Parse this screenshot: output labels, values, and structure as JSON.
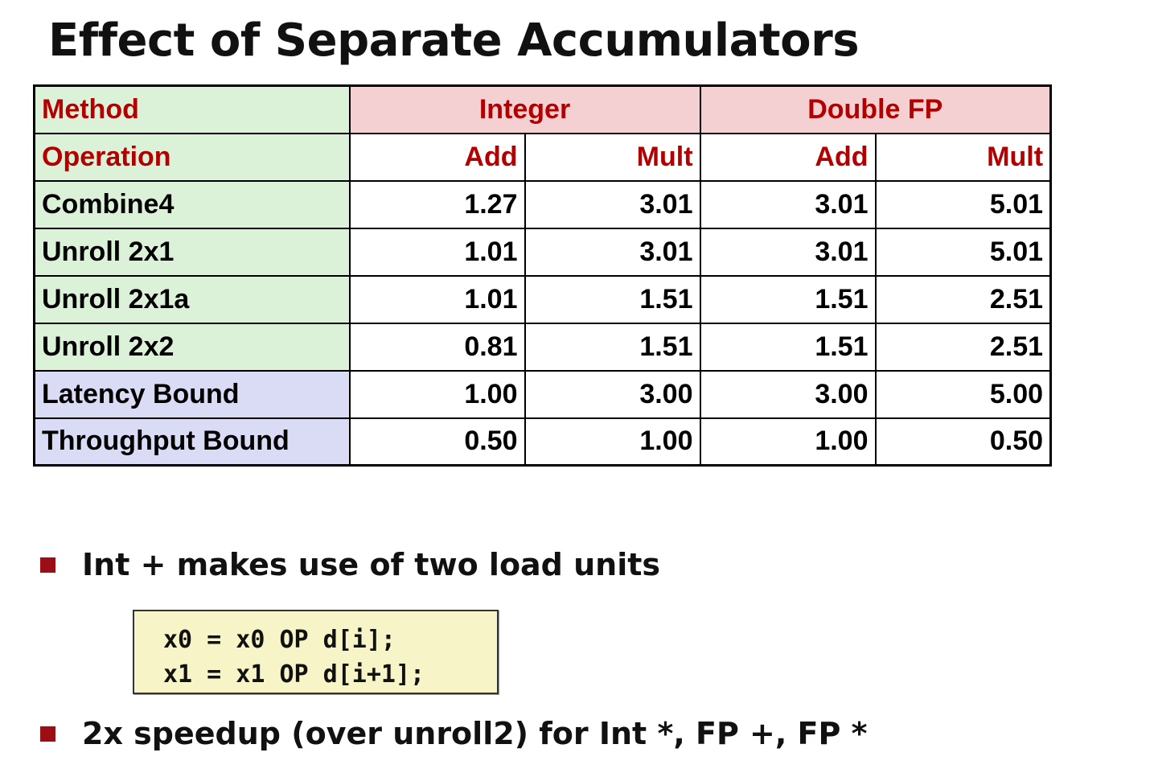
{
  "title": "Effect of Separate Accumulators",
  "table": {
    "method_label": "Method",
    "operation_label": "Operation",
    "groups": [
      "Integer",
      "Double FP"
    ],
    "subheaders": [
      "Add",
      "Mult",
      "Add",
      "Mult"
    ],
    "rows": [
      {
        "method": "Combine4",
        "values": [
          "1.27",
          "3.01",
          "3.01",
          "5.01"
        ]
      },
      {
        "method": "Unroll 2x1",
        "values": [
          "1.01",
          "3.01",
          "3.01",
          "5.01"
        ]
      },
      {
        "method": "Unroll 2x1a",
        "values": [
          "1.01",
          "1.51",
          "1.51",
          "2.51"
        ]
      },
      {
        "method": "Unroll 2x2",
        "values": [
          "0.81",
          "1.51",
          "1.51",
          "2.51"
        ]
      },
      {
        "method": "Latency Bound",
        "values": [
          "1.00",
          "3.00",
          "3.00",
          "5.00"
        ]
      },
      {
        "method": "Throughput Bound",
        "values": [
          "0.50",
          "1.00",
          "1.00",
          "0.50"
        ]
      }
    ],
    "colors": {
      "method_bg": "#dcf2d8",
      "group_bg": "#f4d0d3",
      "bound_bg": "#dadcf6",
      "header_text": "#b20000"
    }
  },
  "bullets": [
    {
      "icon": "square-bullet-icon",
      "text": "Int + makes use of two load units"
    },
    {
      "icon": "square-bullet-icon",
      "text": "2x speedup (over unroll2) for Int *, FP +, FP *"
    }
  ],
  "code": {
    "lines": [
      "x0 = x0 OP d[i];",
      "x1 = x1 OP d[i+1];"
    ]
  }
}
